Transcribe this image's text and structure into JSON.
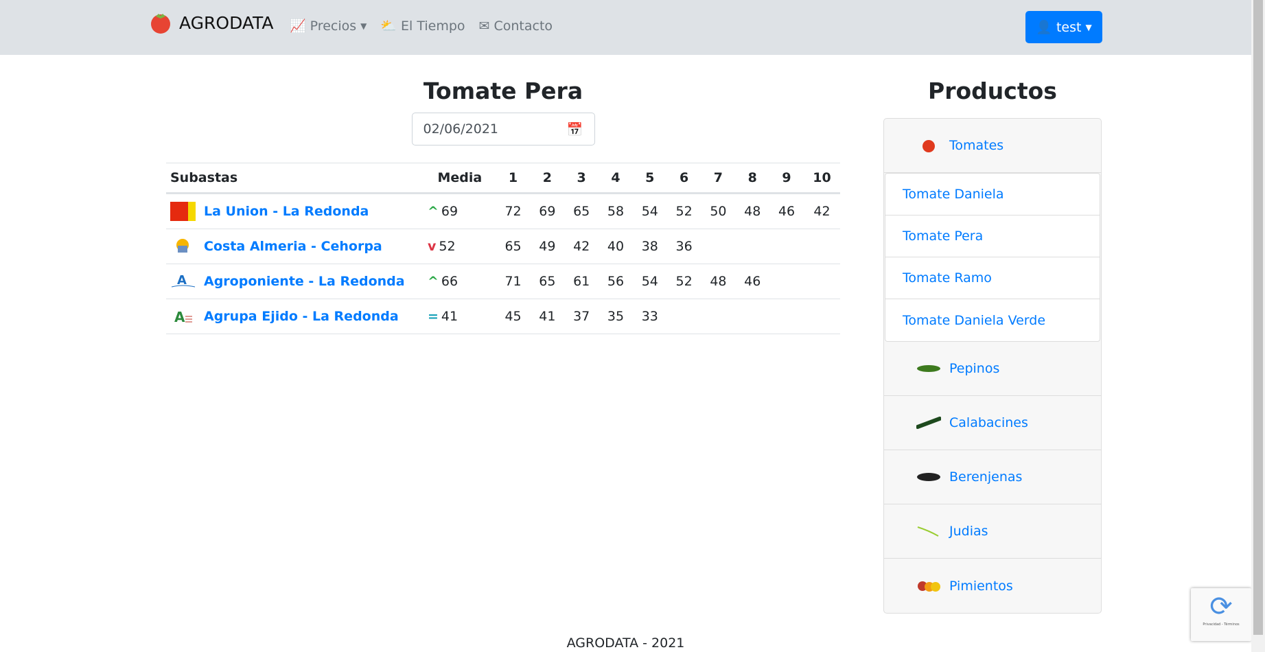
{
  "nav": {
    "brand": "AGRODATA",
    "links": [
      {
        "label": "Precios",
        "icon": "chart-line-icon"
      },
      {
        "label": "El Tiempo",
        "icon": "cloud-sun-icon"
      },
      {
        "label": "Contacto",
        "icon": "envelope-icon"
      }
    ],
    "user": "test"
  },
  "main": {
    "title": "Tomate Pera",
    "date": "02/06/2021",
    "headers": [
      "Subastas",
      "Media",
      "1",
      "2",
      "3",
      "4",
      "5",
      "6",
      "7",
      "8",
      "9",
      "10"
    ],
    "rows": [
      {
        "name": "La Union - La Redonda",
        "trend": "up",
        "media": "69",
        "values": [
          "72",
          "69",
          "65",
          "58",
          "54",
          "52",
          "50",
          "48",
          "46",
          "42"
        ]
      },
      {
        "name": "Costa Almeria - Cehorpa",
        "trend": "down",
        "media": "52",
        "values": [
          "65",
          "49",
          "42",
          "40",
          "38",
          "36",
          "",
          "",
          "",
          ""
        ]
      },
      {
        "name": "Agroponiente - La Redonda",
        "trend": "up",
        "media": "66",
        "values": [
          "71",
          "65",
          "61",
          "56",
          "54",
          "52",
          "48",
          "46",
          "",
          ""
        ]
      },
      {
        "name": "Agrupa Ejido - La Redonda",
        "trend": "equal",
        "media": "41",
        "values": [
          "45",
          "41",
          "37",
          "35",
          "33",
          "",
          "",
          "",
          "",
          ""
        ]
      }
    ]
  },
  "sidebar": {
    "title": "Productos",
    "categories": [
      "Tomates",
      "Pepinos",
      "Calabacines",
      "Berenjenas",
      "Judias",
      "Pimientos"
    ],
    "tomatoes": [
      "Tomate Daniela",
      "Tomate Pera",
      "Tomate Ramo",
      "Tomate Daniela Verde"
    ]
  },
  "footer": "AGRODATA - 2021",
  "recaptcha": "Privacidad - Términos",
  "colors": {
    "primary": "#007bff",
    "up": "#28a745",
    "down": "#dc3545",
    "equal": "#17a2b8",
    "navbar": "#dee2e6"
  }
}
